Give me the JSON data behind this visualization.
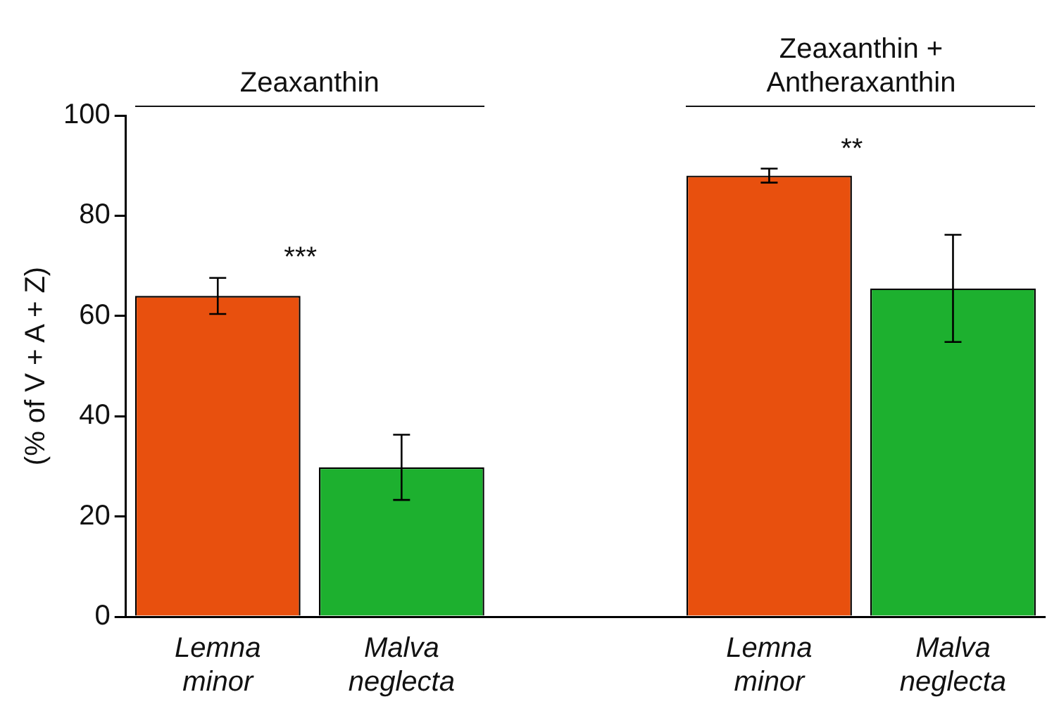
{
  "chart_data": {
    "type": "bar",
    "ylabel": "(% of V + A + Z)",
    "categories": [
      "Lemna minor",
      "Malva neglecta",
      null,
      "Lemna minor",
      "Malva neglecta"
    ],
    "values": [
      64,
      29.8,
      null,
      88,
      65.5
    ],
    "colors": [
      "#e8500e",
      "#1db02f",
      "#ffffff",
      "#e8500e",
      "#1db02f"
    ],
    "errors": [
      3.6,
      6.5,
      null,
      1.4,
      10.7
    ],
    "ylim": [
      0,
      100
    ],
    "yticks": [
      0,
      20,
      40,
      60,
      80,
      100
    ],
    "annotations": [
      "Zeaxanthin",
      "Zeaxanthin + Antheraxanthin",
      "***",
      "**"
    ]
  }
}
